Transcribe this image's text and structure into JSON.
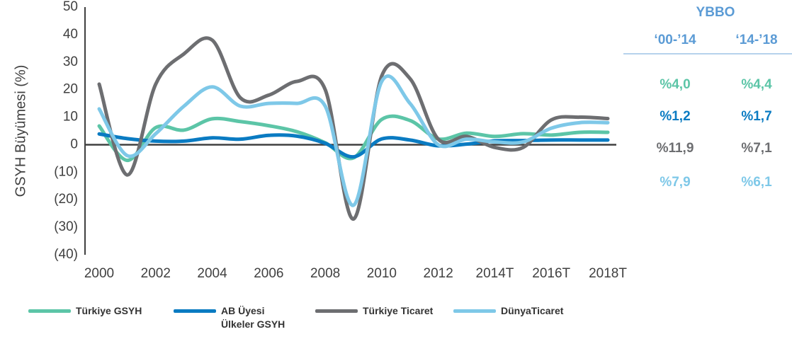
{
  "chart_data": {
    "type": "line",
    "y_label": "GSYH Büyümesi (%)",
    "categories": [
      "2000",
      null,
      "2002",
      null,
      "2004",
      null,
      "2006",
      null,
      "2008",
      null,
      "2010",
      null,
      "2012",
      null,
      "2014T",
      null,
      "2016T",
      null,
      "2018T"
    ],
    "series": [
      {
        "name": "Türkiye GSYH",
        "color": "#5cc5a7",
        "values": [
          6.8,
          -5.7,
          6.2,
          5.3,
          9.4,
          8.4,
          6.9,
          4.7,
          0.7,
          -4.8,
          9.2,
          8.8,
          2.1,
          4.2,
          3.0,
          4.0,
          3.5,
          4.5,
          4.5
        ]
      },
      {
        "name": "AB Üyesi Ülkeler GSYH",
        "color": "#0a7bc2",
        "values": [
          3.9,
          2.2,
          1.3,
          1.3,
          2.5,
          2.0,
          3.4,
          3.1,
          0.5,
          -4.4,
          2.1,
          1.7,
          -0.4,
          0.2,
          1.4,
          1.5,
          1.7,
          1.7,
          1.7
        ]
      },
      {
        "name": "Türkiye Ticaret",
        "color": "#6d6e71",
        "values": [
          22,
          -11,
          22,
          33,
          38,
          17,
          18,
          23,
          20,
          -27,
          25,
          24,
          2,
          3,
          -1,
          -1,
          9,
          10,
          9.5
        ]
      },
      {
        "name": "DünyaTicaret",
        "color": "#7ec8e8",
        "values": [
          13,
          -4,
          4,
          14,
          21,
          14,
          15,
          15,
          14,
          -22,
          23,
          15,
          0,
          2,
          1,
          1,
          6,
          8,
          8
        ]
      }
    ],
    "ylim": [
      -40,
      50
    ],
    "yticks": [
      {
        "value": -40,
        "label": "(40)"
      },
      {
        "value": -30,
        "label": "(30)"
      },
      {
        "value": -20,
        "label": "(20)"
      },
      {
        "value": -10,
        "label": "(10)"
      },
      0,
      10,
      20,
      30,
      40,
      50
    ],
    "grid": false
  },
  "table": {
    "title": "YBBO",
    "columns": [
      "‘00-’14",
      "‘14-’18"
    ],
    "rows": [
      [
        "%4,0",
        "%4,4"
      ],
      [
        "%1,2",
        "%1,7"
      ],
      [
        "%11,9",
        "%7,1"
      ],
      [
        "%7,9",
        "%6,1"
      ]
    ]
  }
}
